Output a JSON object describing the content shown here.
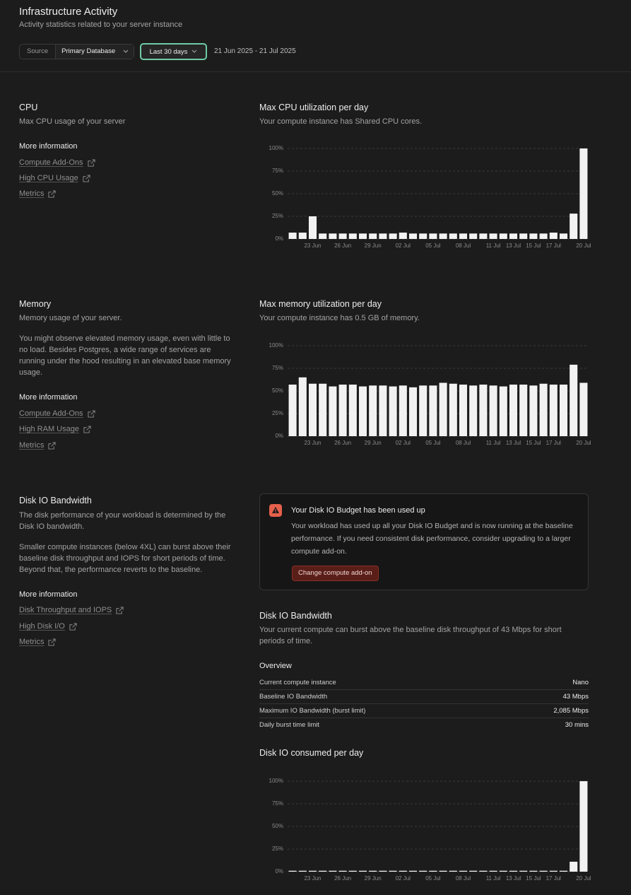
{
  "header": {
    "title": "Infrastructure Activity",
    "subtitle": "Activity statistics related to your server instance",
    "source_label": "Source",
    "source_value": "Primary Database",
    "range_button": "Last 30 days",
    "date_range": "21 Jun 2025 - 21 Jul 2025"
  },
  "sections": {
    "cpu": {
      "title": "CPU",
      "description": "Max CPU usage of your server",
      "more_info": "More information",
      "links": [
        "Compute Add-Ons",
        "High CPU Usage",
        "Metrics"
      ]
    },
    "memory": {
      "title": "Memory",
      "description": "Memory usage of your server.",
      "note": "You might observe elevated memory usage, even with little to no load. Besides Postgres, a wide range of services are running under the hood resulting in an elevated base memory usage.",
      "more_info": "More information",
      "links": [
        "Compute Add-Ons",
        "High RAM Usage",
        "Metrics"
      ]
    },
    "disk": {
      "title": "Disk IO Bandwidth",
      "description": "The disk performance of your workload is determined by the Disk IO bandwidth.",
      "note": "Smaller compute instances (below 4XL) can burst above their baseline disk throughput and IOPS for short periods of time. Beyond that, the performance reverts to the baseline.",
      "more_info": "More information",
      "links": [
        "Disk Throughput and IOPS",
        "High Disk I/O",
        "Metrics"
      ]
    }
  },
  "alert": {
    "title": "Your Disk IO Budget has been used up",
    "body": "Your workload has used up all your Disk IO Budget and is now running at the baseline performance. If you need consistent disk performance, consider upgrading to a larger compute add-on.",
    "button": "Change compute add-on"
  },
  "disk_overview": {
    "title": "Disk IO Bandwidth",
    "description": "Your current compute can burst above the baseline disk throughput of 43 Mbps for short periods of time.",
    "overview_title": "Overview",
    "rows": [
      [
        "Current compute instance",
        "Nano"
      ],
      [
        "Baseline IO Bandwidth",
        "43 Mbps"
      ],
      [
        "Maximum IO Bandwidth (burst limit)",
        "2,085 Mbps"
      ],
      [
        "Daily burst time limit",
        "30 mins"
      ]
    ]
  },
  "chart_data": [
    {
      "type": "bar",
      "title": "Max CPU utilization per day",
      "subtitle": "Your compute instance has Shared CPU cores.",
      "color": "#f2f2f2",
      "grid": true,
      "categories": [
        null,
        null,
        "23 Jun",
        null,
        null,
        "26 Jun",
        null,
        null,
        "29 Jun",
        null,
        null,
        "02 Jul",
        null,
        null,
        "05 Jul",
        null,
        null,
        "08 Jul",
        null,
        null,
        "11 Jul",
        null,
        "13 Jul",
        null,
        "15 Jul",
        null,
        "17 Jul",
        null,
        null,
        "20 Jul"
      ],
      "values": [
        7,
        7,
        25,
        6,
        6,
        6,
        6,
        6,
        6,
        6,
        6,
        7,
        6,
        6,
        6,
        6,
        6,
        6,
        6,
        6,
        6,
        6,
        6,
        6,
        6,
        6,
        7,
        6,
        28,
        100
      ],
      "ylim": [
        0,
        100
      ],
      "yticks": [
        {
          "value": 0,
          "label": "0%"
        },
        {
          "value": 25,
          "label": "25%"
        },
        {
          "value": 50,
          "label": "50%"
        },
        {
          "value": 75,
          "label": "75%"
        },
        {
          "value": 100,
          "label": "100%"
        }
      ]
    },
    {
      "type": "bar",
      "title": "Max memory utilization per day",
      "subtitle": "Your compute instance has 0.5 GB of memory.",
      "color": "#f2f2f2",
      "grid": true,
      "categories": [
        null,
        null,
        "23 Jun",
        null,
        null,
        "26 Jun",
        null,
        null,
        "29 Jun",
        null,
        null,
        "02 Jul",
        null,
        null,
        "05 Jul",
        null,
        null,
        "08 Jul",
        null,
        null,
        "11 Jul",
        null,
        "13 Jul",
        null,
        "15 Jul",
        null,
        "17 Jul",
        null,
        null,
        "20 Jul"
      ],
      "values": [
        57,
        65,
        58,
        58,
        55,
        57,
        57,
        55,
        56,
        56,
        55,
        56,
        54,
        56,
        56,
        59,
        58,
        57,
        56,
        57,
        56,
        55,
        57,
        57,
        56,
        58,
        57,
        57,
        79,
        59
      ],
      "ylim": [
        0,
        100
      ],
      "yticks": [
        {
          "value": 0,
          "label": "0%"
        },
        {
          "value": 25,
          "label": "25%"
        },
        {
          "value": 50,
          "label": "50%"
        },
        {
          "value": 75,
          "label": "75%"
        },
        {
          "value": 100,
          "label": "100%"
        }
      ]
    },
    {
      "type": "bar",
      "title": "Disk IO consumed per day",
      "color": "#f2f2f2",
      "grid": true,
      "categories": [
        null,
        null,
        "23 Jun",
        null,
        null,
        "26 Jun",
        null,
        null,
        "29 Jun",
        null,
        null,
        "02 Jul",
        null,
        null,
        "05 Jul",
        null,
        null,
        "08 Jul",
        null,
        null,
        "11 Jul",
        null,
        "13 Jul",
        null,
        "15 Jul",
        null,
        "17 Jul",
        null,
        null,
        "20 Jul"
      ],
      "values": [
        1,
        1,
        1,
        1,
        1,
        1,
        1,
        1,
        1,
        1,
        1,
        1,
        1,
        1,
        1,
        1,
        1,
        1,
        1,
        1,
        1,
        1,
        1,
        1,
        1,
        1,
        1,
        1,
        11,
        100
      ],
      "ylim": [
        0,
        100
      ],
      "yticks": [
        {
          "value": 0,
          "label": "0%"
        },
        {
          "value": 25,
          "label": "25%"
        },
        {
          "value": 50,
          "label": "50%"
        },
        {
          "value": 75,
          "label": "75%"
        },
        {
          "value": 100,
          "label": "100%"
        }
      ]
    }
  ]
}
